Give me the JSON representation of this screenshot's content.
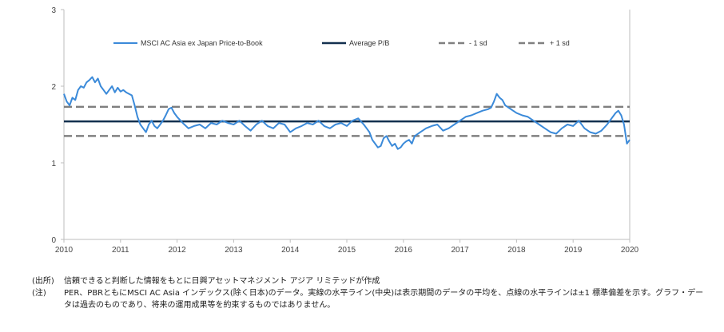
{
  "chart_data": {
    "type": "line",
    "x_ticks": [
      "2010",
      "2011",
      "2012",
      "2013",
      "2014",
      "2015",
      "2016",
      "2017",
      "2018",
      "2019",
      "2020"
    ],
    "y_ticks": [
      "0",
      "1",
      "2",
      "3"
    ],
    "xlim": [
      2010,
      2020
    ],
    "ylim": [
      0,
      3
    ],
    "grid": false,
    "legend_position": "top",
    "legend": [
      {
        "label": "MSCI AC Asia ex Japan Price-to-Book",
        "style": "solid-thin",
        "color": "#3b8ad9"
      },
      {
        "label": "Average P/B",
        "style": "solid-thick",
        "color": "#13304f"
      },
      {
        "label": "- 1 sd",
        "style": "dashed",
        "color": "#808080"
      },
      {
        "label": "+ 1 sd",
        "style": "dashed",
        "color": "#808080"
      }
    ],
    "average": 1.54,
    "minus_1sd": 1.35,
    "plus_1sd": 1.73,
    "series": [
      {
        "name": "MSCI AC Asia ex Japan Price-to-Book",
        "color": "#3b8ad9",
        "x": [
          2010.0,
          2010.05,
          2010.1,
          2010.15,
          2010.2,
          2010.25,
          2010.3,
          2010.35,
          2010.4,
          2010.45,
          2010.5,
          2010.55,
          2010.6,
          2010.65,
          2010.7,
          2010.75,
          2010.8,
          2010.85,
          2010.9,
          2010.95,
          2011.0,
          2011.05,
          2011.1,
          2011.15,
          2011.2,
          2011.25,
          2011.3,
          2011.35,
          2011.4,
          2011.45,
          2011.5,
          2011.55,
          2011.6,
          2011.65,
          2011.7,
          2011.75,
          2011.8,
          2011.85,
          2011.9,
          2011.95,
          2012.0,
          2012.1,
          2012.2,
          2012.3,
          2012.4,
          2012.5,
          2012.6,
          2012.7,
          2012.8,
          2012.9,
          2013.0,
          2013.1,
          2013.2,
          2013.3,
          2013.4,
          2013.5,
          2013.6,
          2013.7,
          2013.8,
          2013.9,
          2014.0,
          2014.1,
          2014.2,
          2014.3,
          2014.4,
          2014.5,
          2014.6,
          2014.7,
          2014.8,
          2014.9,
          2015.0,
          2015.1,
          2015.2,
          2015.3,
          2015.35,
          2015.4,
          2015.45,
          2015.5,
          2015.55,
          2015.6,
          2015.65,
          2015.7,
          2015.75,
          2015.8,
          2015.85,
          2015.9,
          2015.95,
          2016.0,
          2016.05,
          2016.1,
          2016.15,
          2016.2,
          2016.3,
          2016.4,
          2016.5,
          2016.6,
          2016.7,
          2016.8,
          2016.9,
          2017.0,
          2017.1,
          2017.2,
          2017.3,
          2017.4,
          2017.5,
          2017.55,
          2017.6,
          2017.65,
          2017.7,
          2017.75,
          2017.8,
          2017.9,
          2018.0,
          2018.1,
          2018.2,
          2018.3,
          2018.4,
          2018.5,
          2018.6,
          2018.7,
          2018.8,
          2018.9,
          2019.0,
          2019.1,
          2019.2,
          2019.3,
          2019.4,
          2019.5,
          2019.6,
          2019.65,
          2019.7,
          2019.75,
          2019.8,
          2019.85,
          2019.9,
          2019.95,
          2020.0
        ],
        "y": [
          1.9,
          1.8,
          1.75,
          1.85,
          1.82,
          1.95,
          2.0,
          1.98,
          2.05,
          2.08,
          2.12,
          2.05,
          2.1,
          2.0,
          1.95,
          1.9,
          1.95,
          2.0,
          1.92,
          1.98,
          1.93,
          1.95,
          1.92,
          1.9,
          1.88,
          1.75,
          1.6,
          1.5,
          1.45,
          1.4,
          1.5,
          1.55,
          1.48,
          1.45,
          1.5,
          1.55,
          1.62,
          1.7,
          1.72,
          1.65,
          1.6,
          1.52,
          1.45,
          1.48,
          1.5,
          1.45,
          1.52,
          1.5,
          1.55,
          1.52,
          1.5,
          1.55,
          1.48,
          1.42,
          1.5,
          1.55,
          1.48,
          1.45,
          1.52,
          1.5,
          1.4,
          1.45,
          1.48,
          1.52,
          1.5,
          1.55,
          1.48,
          1.45,
          1.5,
          1.52,
          1.48,
          1.55,
          1.58,
          1.5,
          1.45,
          1.4,
          1.3,
          1.25,
          1.2,
          1.22,
          1.32,
          1.35,
          1.28,
          1.22,
          1.25,
          1.18,
          1.2,
          1.25,
          1.28,
          1.3,
          1.25,
          1.35,
          1.4,
          1.45,
          1.48,
          1.5,
          1.42,
          1.45,
          1.5,
          1.55,
          1.6,
          1.62,
          1.65,
          1.68,
          1.7,
          1.72,
          1.8,
          1.9,
          1.85,
          1.82,
          1.75,
          1.7,
          1.65,
          1.62,
          1.6,
          1.55,
          1.5,
          1.45,
          1.4,
          1.38,
          1.45,
          1.5,
          1.48,
          1.55,
          1.45,
          1.4,
          1.38,
          1.42,
          1.5,
          1.55,
          1.6,
          1.65,
          1.68,
          1.62,
          1.5,
          1.25,
          1.3
        ]
      }
    ]
  },
  "notes": [
    {
      "label": "(出所)",
      "text": "信頼できると判断した情報をもとに日興アセットマネジメント アジア リミテッドが作成"
    },
    {
      "label": "(注)",
      "text": "PER、PBRともにMSCI AC Asia インデックス(除く日本)のデータ。実線の水平ライン(中央)は表示期間のデータの平均を、点線の水平ラインは±1 標準偏差を示す。グラフ・データは過去のものであり、将来の運用成果等を約束するものではありません。"
    }
  ]
}
